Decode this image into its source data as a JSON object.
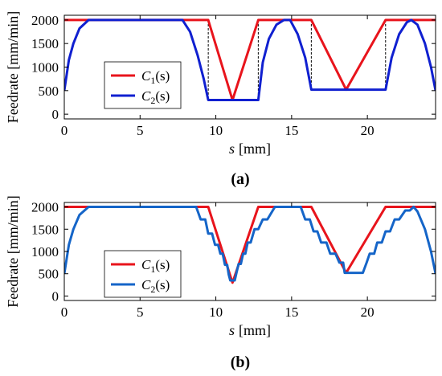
{
  "chart_data": [
    {
      "type": "line",
      "panel_label": "(a)",
      "xlabel_var": "s",
      "xlabel_unit": "[mm]",
      "ylabel": "Feedrate [mm/min]",
      "xlim": [
        0,
        24.5
      ],
      "ylim": [
        -100,
        2100
      ],
      "x_ticks": [
        0,
        5,
        10,
        15,
        20
      ],
      "y_ticks": [
        0,
        500,
        1000,
        1500,
        2000
      ],
      "grid": false,
      "legend_position": "left-center",
      "series": [
        {
          "name_main": "C",
          "name_sub": "1",
          "name_arg": "(s)",
          "color": "#e8141c",
          "points": [
            [
              0,
              2000
            ],
            [
              9.5,
              2000
            ],
            [
              11.1,
              300
            ],
            [
              12.8,
              2000
            ],
            [
              16.3,
              2000
            ],
            [
              18.6,
              520
            ],
            [
              21.2,
              2000
            ],
            [
              24.5,
              2000
            ]
          ]
        },
        {
          "name_main": "C",
          "name_sub": "2",
          "name_arg": "(s)",
          "color": "#1020d0",
          "points": [
            [
              0,
              500
            ],
            [
              0.3,
              1150
            ],
            [
              0.6,
              1500
            ],
            [
              1.0,
              1820
            ],
            [
              1.6,
              2000
            ],
            [
              7.8,
              2000
            ],
            [
              8.3,
              1750
            ],
            [
              8.8,
              1250
            ],
            [
              9.2,
              750
            ],
            [
              9.5,
              300
            ],
            [
              12.8,
              300
            ],
            [
              13.1,
              1100
            ],
            [
              13.5,
              1600
            ],
            [
              14.0,
              1900
            ],
            [
              14.5,
              2000
            ],
            [
              14.9,
              2000
            ],
            [
              15.4,
              1700
            ],
            [
              15.9,
              1200
            ],
            [
              16.3,
              520
            ],
            [
              21.2,
              520
            ],
            [
              21.6,
              1200
            ],
            [
              22.1,
              1700
            ],
            [
              22.6,
              1950
            ],
            [
              22.9,
              2000
            ],
            [
              23.3,
              1900
            ],
            [
              23.8,
              1500
            ],
            [
              24.2,
              1000
            ],
            [
              24.5,
              500
            ]
          ]
        }
      ],
      "annotations": {
        "dashed_vertical_x": [
          9.5,
          12.8,
          16.3,
          21.2
        ]
      }
    },
    {
      "type": "line",
      "panel_label": "(b)",
      "xlabel_var": "s",
      "xlabel_unit": "[mm]",
      "ylabel": "Feedrate [mm/min]",
      "xlim": [
        0,
        24.5
      ],
      "ylim": [
        -100,
        2100
      ],
      "x_ticks": [
        0,
        5,
        10,
        15,
        20
      ],
      "y_ticks": [
        0,
        500,
        1000,
        1500,
        2000
      ],
      "grid": false,
      "legend_position": "left-center",
      "series": [
        {
          "name_main": "C",
          "name_sub": "1",
          "name_arg": "(s)",
          "color": "#e8141c",
          "points": [
            [
              0,
              2000
            ],
            [
              9.5,
              2000
            ],
            [
              11.1,
              300
            ],
            [
              12.8,
              2000
            ],
            [
              16.3,
              2000
            ],
            [
              18.6,
              520
            ],
            [
              21.2,
              2000
            ],
            [
              24.5,
              2000
            ]
          ]
        },
        {
          "name_main": "C",
          "name_sub": "2",
          "name_arg": "(s)",
          "color": "#1565c8",
          "points": [
            [
              0,
              500
            ],
            [
              0.3,
              1150
            ],
            [
              0.6,
              1500
            ],
            [
              1.0,
              1820
            ],
            [
              1.6,
              2000
            ],
            [
              8.7,
              2000
            ],
            [
              9.0,
              1720
            ],
            [
              9.3,
              1720
            ],
            [
              9.5,
              1400
            ],
            [
              9.75,
              1400
            ],
            [
              9.95,
              1150
            ],
            [
              10.15,
              1150
            ],
            [
              10.3,
              950
            ],
            [
              10.45,
              950
            ],
            [
              10.6,
              700
            ],
            [
              10.75,
              700
            ],
            [
              10.85,
              480
            ],
            [
              10.95,
              350
            ],
            [
              11.25,
              350
            ],
            [
              11.35,
              500
            ],
            [
              11.5,
              720
            ],
            [
              11.65,
              720
            ],
            [
              11.8,
              950
            ],
            [
              11.95,
              950
            ],
            [
              12.1,
              1200
            ],
            [
              12.3,
              1200
            ],
            [
              12.55,
              1500
            ],
            [
              12.8,
              1500
            ],
            [
              13.1,
              1720
            ],
            [
              13.4,
              1720
            ],
            [
              13.9,
              2000
            ],
            [
              15.6,
              2000
            ],
            [
              15.9,
              1720
            ],
            [
              16.2,
              1720
            ],
            [
              16.45,
              1450
            ],
            [
              16.7,
              1450
            ],
            [
              16.95,
              1200
            ],
            [
              17.3,
              1200
            ],
            [
              17.55,
              950
            ],
            [
              17.9,
              950
            ],
            [
              18.15,
              750
            ],
            [
              18.4,
              750
            ],
            [
              18.5,
              520
            ],
            [
              19.7,
              520
            ],
            [
              19.95,
              750
            ],
            [
              20.15,
              950
            ],
            [
              20.45,
              950
            ],
            [
              20.65,
              1200
            ],
            [
              20.95,
              1200
            ],
            [
              21.2,
              1450
            ],
            [
              21.5,
              1450
            ],
            [
              21.8,
              1720
            ],
            [
              22.1,
              1720
            ],
            [
              22.5,
              1920
            ],
            [
              22.8,
              1920
            ],
            [
              23.05,
              2000
            ],
            [
              23.3,
              1900
            ],
            [
              23.8,
              1500
            ],
            [
              24.2,
              1000
            ],
            [
              24.5,
              500
            ]
          ]
        }
      ],
      "annotations": {
        "dashed_vertical_x": []
      }
    }
  ]
}
